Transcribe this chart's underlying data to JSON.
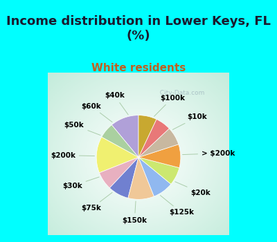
{
  "title": "Income distribution in Lower Keys, FL\n(%)",
  "subtitle": "White residents",
  "title_fontsize": 13,
  "subtitle_fontsize": 11,
  "title_color": "#1a1a2e",
  "subtitle_color": "#c06020",
  "background_cyan": "#00FFFF",
  "background_chart": "#cce8d8",
  "labels": [
    "$100k",
    "$10k",
    "> $200k",
    "$20k",
    "$125k",
    "$150k",
    "$75k",
    "$30k",
    "$200k",
    "$50k",
    "$60k",
    "$40k"
  ],
  "values": [
    11,
    6,
    14,
    7,
    8,
    10,
    8,
    7,
    9,
    7,
    6,
    7
  ],
  "colors": [
    "#b0a0d8",
    "#aad0a0",
    "#f0f070",
    "#e8b0c0",
    "#7080d0",
    "#f0c898",
    "#90b8f0",
    "#cce870",
    "#f0a040",
    "#c8b8a0",
    "#e87878",
    "#c8a830"
  ],
  "label_fontsize": 7.5,
  "watermark": "  City-Data.com"
}
